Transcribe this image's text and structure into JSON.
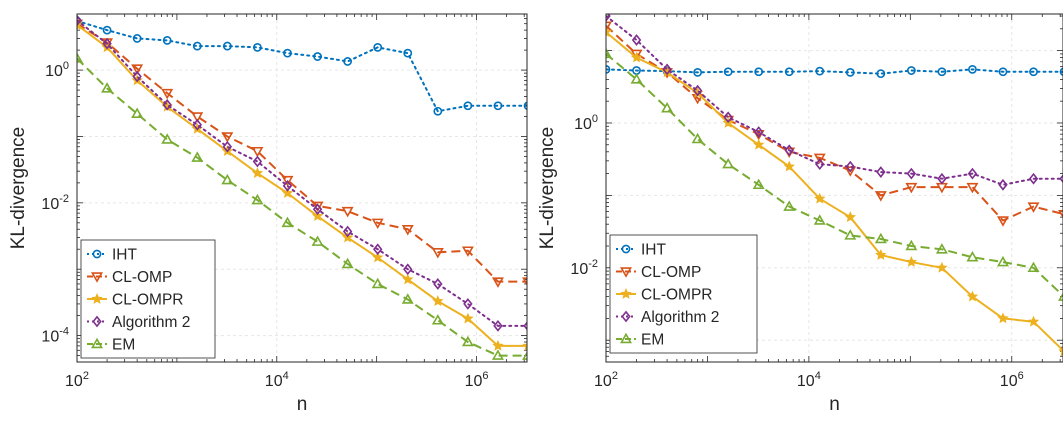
{
  "chart_data": [
    {
      "type": "line",
      "xscale": "log",
      "yscale": "log",
      "xlabel": "n",
      "ylabel": "KL-divergence",
      "xlim": [
        100,
        3200000
      ],
      "ylim": [
        4e-05,
        7
      ],
      "grid": true,
      "legend_position": "bottom-left",
      "x_ticks": [
        {
          "v": 100,
          "b": "10",
          "e": "2"
        },
        {
          "v": 10000,
          "b": "10",
          "e": "4"
        },
        {
          "v": 1000000,
          "b": "10",
          "e": "6"
        }
      ],
      "y_ticks": [
        {
          "v": 0.0001,
          "b": "10",
          "e": "-4"
        },
        {
          "v": 0.01,
          "b": "10",
          "e": "-2"
        },
        {
          "v": 1,
          "b": "10",
          "e": "0"
        }
      ],
      "x": [
        100,
        200,
        400,
        800,
        1600,
        3200,
        6400,
        12800,
        25600,
        51200,
        102400,
        204800,
        409600,
        819200,
        1638400,
        3276800
      ],
      "series": [
        {
          "name": "IHT",
          "color": "#0072BD",
          "dash": "dot",
          "marker": "circle",
          "values": [
            5.5,
            4.0,
            3.0,
            2.8,
            2.3,
            2.3,
            2.2,
            1.8,
            1.6,
            1.35,
            2.2,
            1.8,
            0.24,
            0.29,
            0.29,
            0.29
          ]
        },
        {
          "name": "CL-OMP",
          "color": "#D95319",
          "dash": "dash",
          "marker": "triangle-down",
          "values": [
            5.0,
            2.6,
            1.05,
            0.45,
            0.2,
            0.1,
            0.06,
            0.022,
            0.009,
            0.0075,
            0.005,
            0.004,
            0.0018,
            0.0019,
            0.00065,
            0.00065
          ]
        },
        {
          "name": "CL-OMPR",
          "color": "#EDB120",
          "dash": "solid",
          "marker": "star",
          "values": [
            4.8,
            2.2,
            0.7,
            0.28,
            0.13,
            0.06,
            0.028,
            0.014,
            0.0063,
            0.003,
            0.0015,
            0.0007,
            0.00033,
            0.00018,
            7e-05,
            7e-05
          ]
        },
        {
          "name": "Algorithm 2",
          "color": "#7E2F8E",
          "dash": "dot",
          "marker": "diamond",
          "values": [
            5.6,
            2.5,
            0.8,
            0.3,
            0.15,
            0.07,
            0.042,
            0.018,
            0.008,
            0.0037,
            0.002,
            0.001,
            0.0006,
            0.0003,
            0.00014,
            0.00014
          ]
        },
        {
          "name": "EM",
          "color": "#77AC30",
          "dash": "dash",
          "marker": "triangle-up",
          "values": [
            1.5,
            0.53,
            0.22,
            0.09,
            0.048,
            0.022,
            0.011,
            0.005,
            0.0026,
            0.0012,
            0.0006,
            0.00035,
            0.00017,
            8e-05,
            5e-05,
            5e-05
          ]
        }
      ]
    },
    {
      "type": "line",
      "xscale": "log",
      "yscale": "log",
      "xlabel": "n",
      "ylabel": "KL-divergence",
      "xlim": [
        100,
        3200000
      ],
      "ylim": [
        0.0005,
        32
      ],
      "grid": true,
      "legend_position": "bottom-left",
      "x_ticks": [
        {
          "v": 100,
          "b": "10",
          "e": "2"
        },
        {
          "v": 10000,
          "b": "10",
          "e": "4"
        },
        {
          "v": 1000000,
          "b": "10",
          "e": "6"
        }
      ],
      "y_ticks": [
        {
          "v": 0.01,
          "b": "10",
          "e": "-2"
        },
        {
          "v": 1,
          "b": "10",
          "e": "0"
        }
      ],
      "x": [
        100,
        200,
        400,
        800,
        1600,
        3200,
        6400,
        12800,
        25600,
        51200,
        102400,
        204800,
        409600,
        819200,
        1638400,
        3276800
      ],
      "series": [
        {
          "name": "IHT",
          "color": "#0072BD",
          "dash": "dot",
          "marker": "circle",
          "values": [
            5.5,
            5.3,
            5.2,
            5.0,
            5.1,
            5.1,
            5.1,
            5.2,
            5.0,
            4.8,
            5.3,
            5.1,
            5.5,
            5.1,
            5.1,
            5.1
          ]
        },
        {
          "name": "CL-OMP",
          "color": "#D95319",
          "dash": "dash",
          "marker": "triangle-down",
          "values": [
            22.0,
            9.0,
            5.0,
            2.2,
            1.1,
            0.7,
            0.4,
            0.33,
            0.22,
            0.1,
            0.13,
            0.13,
            0.13,
            0.045,
            0.07,
            0.055
          ]
        },
        {
          "name": "CL-OMPR",
          "color": "#EDB120",
          "dash": "solid",
          "marker": "star",
          "values": [
            18.0,
            8.0,
            5.0,
            2.6,
            1.0,
            0.5,
            0.25,
            0.09,
            0.05,
            0.015,
            0.012,
            0.01,
            0.004,
            0.002,
            0.0018,
            0.0007
          ]
        },
        {
          "name": "Algorithm 2",
          "color": "#7E2F8E",
          "dash": "dot",
          "marker": "diamond",
          "values": [
            30.0,
            14.0,
            5.5,
            2.8,
            1.2,
            0.75,
            0.42,
            0.27,
            0.25,
            0.21,
            0.2,
            0.17,
            0.2,
            0.14,
            0.17,
            0.17
          ]
        },
        {
          "name": "EM",
          "color": "#77AC30",
          "dash": "dash",
          "marker": "triangle-up",
          "values": [
            9.0,
            4.0,
            1.6,
            0.6,
            0.27,
            0.14,
            0.07,
            0.045,
            0.028,
            0.025,
            0.02,
            0.018,
            0.014,
            0.012,
            0.01,
            0.004
          ]
        }
      ]
    }
  ]
}
